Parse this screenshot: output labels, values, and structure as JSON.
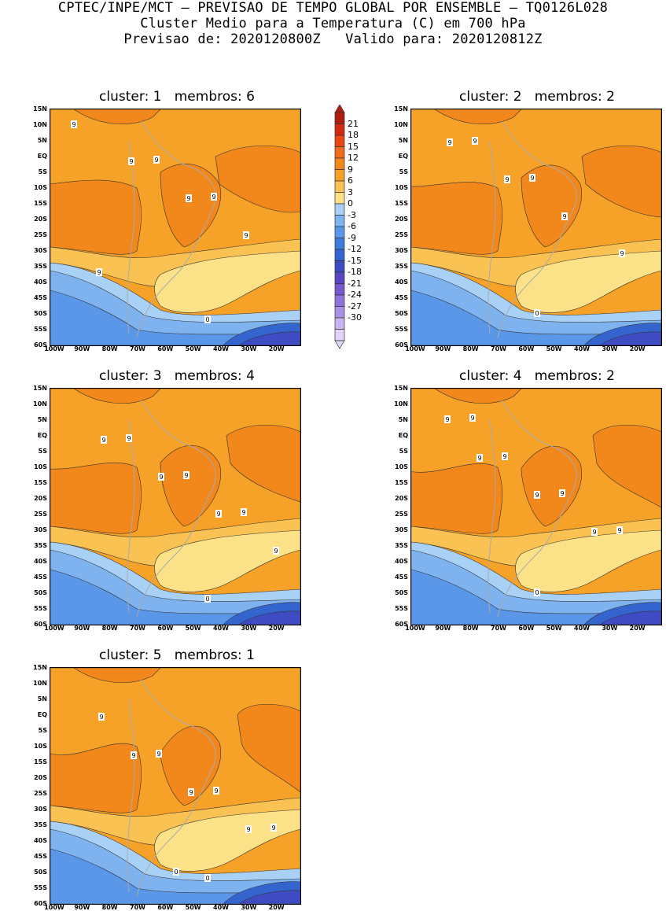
{
  "header": {
    "line1": "CPTEC/INPE/MCT – PREVISAO DE TEMPO GLOBAL POR ENSEMBLE – TQ0126L028",
    "line2": "Cluster Medio para a Temperatura (C) em 700 hPa",
    "line3": "Previsao de: 2020120800Z   Valido para: 2020120812Z"
  },
  "chart_data": {
    "type": "heatmap",
    "variable": "Temperatura (C) em 700 hPa",
    "lat_ticks": [
      "15N",
      "10N",
      "5N",
      "EQ",
      "5S",
      "10S",
      "15S",
      "20S",
      "25S",
      "30S",
      "35S",
      "40S",
      "45S",
      "50S",
      "55S",
      "60S"
    ],
    "lon_ticks": [
      "100W",
      "90W",
      "80W",
      "70W",
      "60W",
      "50W",
      "40W",
      "30W",
      "20W"
    ],
    "lat_range": [
      -60,
      15
    ],
    "lon_range": [
      -100,
      -10
    ],
    "colorbar_levels": [
      "21",
      "18",
      "15",
      "12",
      "9",
      "6",
      "3",
      "0",
      "-3",
      "-6",
      "-9",
      "-12",
      "-15",
      "-18",
      "-21",
      "-24",
      "-27",
      "-30"
    ],
    "colorbar_colors": [
      "#b01c12",
      "#d22a10",
      "#eb4416",
      "#ef6a1c",
      "#f2871c",
      "#f6a127",
      "#f9c252",
      "#fbe187",
      "#a9d0f5",
      "#7fb3f0",
      "#5a97e8",
      "#3d7bdc",
      "#3465cf",
      "#3f4bc2",
      "#5a46c2",
      "#7358d0",
      "#8c74da",
      "#a990e4",
      "#c8b4ee",
      "#e0d4f6"
    ],
    "panels": [
      {
        "cluster_label": "cluster:",
        "cluster": "1",
        "members_label": "membros:",
        "members": "6",
        "contour_labels": [
          "9",
          "9",
          "9",
          "9",
          "9",
          "9",
          "9",
          "0"
        ]
      },
      {
        "cluster_label": "cluster:",
        "cluster": "2",
        "members_label": "membros:",
        "members": "2",
        "contour_labels": [
          "9",
          "9",
          "9",
          "9",
          "9",
          "9",
          "0"
        ]
      },
      {
        "cluster_label": "cluster:",
        "cluster": "3",
        "members_label": "membros:",
        "members": "4",
        "contour_labels": [
          "9",
          "9",
          "9",
          "9",
          "9",
          "9",
          "9",
          "0"
        ]
      },
      {
        "cluster_label": "cluster:",
        "cluster": "4",
        "members_label": "membros:",
        "members": "2",
        "contour_labels": [
          "9",
          "9",
          "9",
          "9",
          "9",
          "9",
          "9",
          "9",
          "0"
        ]
      },
      {
        "cluster_label": "cluster:",
        "cluster": "5",
        "members_label": "membros:",
        "members": "1",
        "contour_labels": [
          "9",
          "9",
          "9",
          "9",
          "9",
          "9",
          "9",
          "0",
          "0"
        ]
      }
    ]
  }
}
